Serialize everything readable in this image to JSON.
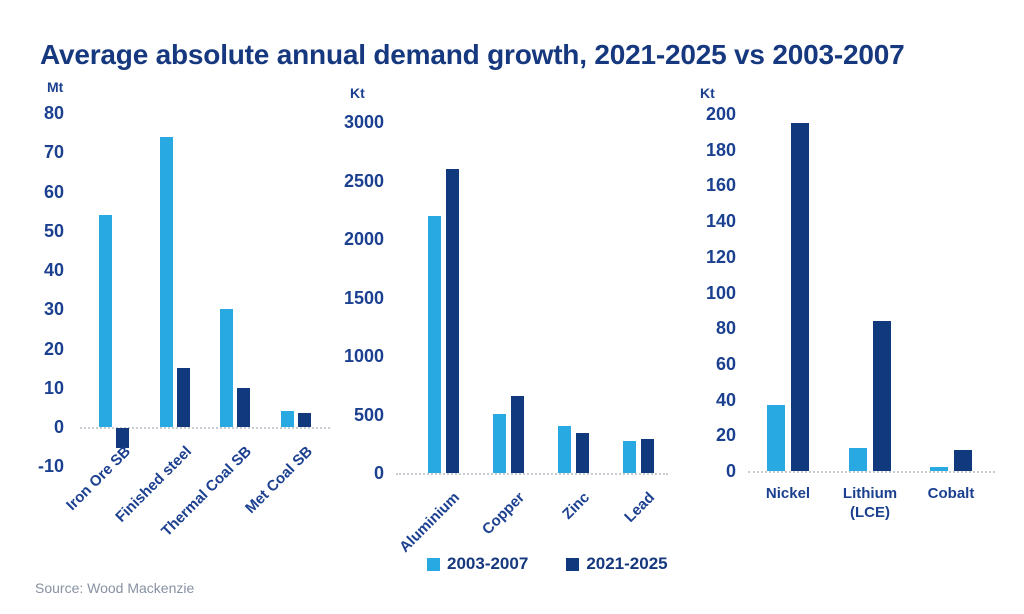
{
  "page": {
    "title": "Average absolute annual demand growth, 2021-2025 vs 2003-2007",
    "source": "Source: Wood Mackenzie"
  },
  "legend": {
    "position": "bottom-center",
    "items": [
      {
        "label": "2003-2007",
        "color": "#29A9E1"
      },
      {
        "label": "2021-2025",
        "color": "#113A7E"
      }
    ]
  },
  "chart_data": [
    {
      "type": "bar",
      "unit": "Mt",
      "categories": [
        "Iron Ore SB",
        "Finished steel",
        "Thermal Coal SB",
        "Met Coal SB"
      ],
      "series": [
        {
          "name": "2003-2007",
          "values": [
            54,
            74,
            30,
            4
          ]
        },
        {
          "name": "2021-2025",
          "values": [
            -5,
            15,
            10,
            3.5
          ]
        }
      ],
      "ylim": [
        -10,
        80
      ],
      "yticks": [
        80,
        70,
        60,
        50,
        40,
        30,
        20,
        10,
        0,
        -10
      ],
      "grid": false,
      "rotated_category_labels": true
    },
    {
      "type": "bar",
      "unit": "Kt",
      "categories": [
        "Aluminium",
        "Copper",
        "Zinc",
        "Lead"
      ],
      "series": [
        {
          "name": "2003-2007",
          "values": [
            2200,
            500,
            400,
            270
          ]
        },
        {
          "name": "2021-2025",
          "values": [
            2600,
            660,
            340,
            290
          ]
        }
      ],
      "ylim": [
        0,
        3000
      ],
      "yticks": [
        3000,
        2500,
        2000,
        1500,
        1000,
        500,
        0
      ],
      "grid": false,
      "rotated_category_labels": true
    },
    {
      "type": "bar",
      "unit": "Kt",
      "categories": [
        "Nickel",
        "Lithium\n(LCE)",
        "Cobalt"
      ],
      "series": [
        {
          "name": "2003-2007",
          "values": [
            37,
            13,
            2
          ]
        },
        {
          "name": "2021-2025",
          "values": [
            195,
            84,
            12
          ]
        }
      ],
      "ylim": [
        0,
        200
      ],
      "yticks": [
        200,
        180,
        160,
        140,
        120,
        100,
        80,
        60,
        40,
        20,
        0
      ],
      "grid": false,
      "rotated_category_labels": false
    }
  ]
}
